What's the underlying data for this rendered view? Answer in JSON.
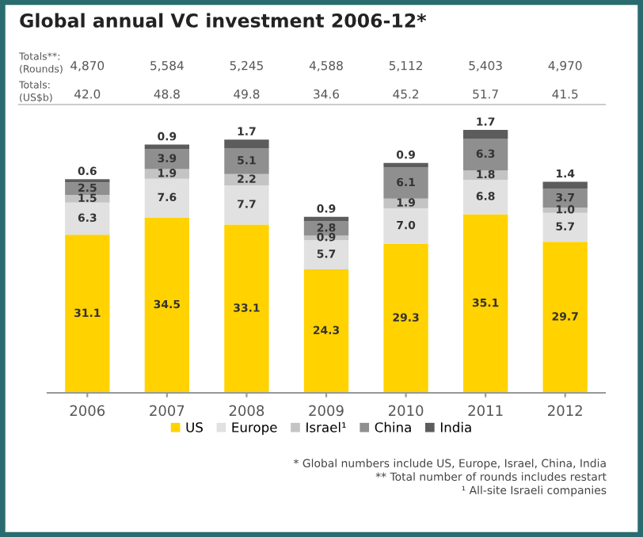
{
  "chart_data": {
    "type": "bar",
    "title": "Global annual VC investment 2006-12*",
    "categories": [
      "2006",
      "2007",
      "2008",
      "2009",
      "2010",
      "2011",
      "2012"
    ],
    "stacked": true,
    "legend": "bottom",
    "series": [
      {
        "name": "US",
        "color": "#ffd200",
        "values": [
          31.1,
          34.5,
          33.1,
          24.3,
          29.3,
          35.1,
          29.7
        ],
        "value_labels": [
          "31.1",
          "34.5",
          "33.1",
          "24.3",
          "29.3",
          "35.1",
          "29.7"
        ]
      },
      {
        "name": "Europe",
        "color": "#e1e1e1",
        "values": [
          6.3,
          7.6,
          7.7,
          5.7,
          7.0,
          6.8,
          5.7
        ],
        "value_labels": [
          "6.3",
          "7.6",
          "7.7",
          "5.7",
          "7.0",
          "6.8",
          "5.7"
        ]
      },
      {
        "name": "Israel¹",
        "color": "#c4c4c4",
        "values": [
          1.5,
          1.9,
          2.2,
          0.9,
          1.9,
          1.8,
          1.0
        ],
        "value_labels": [
          "1.5",
          "1.9",
          "2.2",
          "0.9",
          "1.9",
          "1.8",
          "1.0"
        ]
      },
      {
        "name": "China",
        "color": "#8f8f8f",
        "values": [
          2.5,
          3.9,
          5.1,
          2.8,
          6.1,
          6.3,
          3.7
        ],
        "value_labels": [
          "2.5",
          "3.9",
          "5.1",
          "2.8",
          "6.1",
          "6.3",
          "3.7"
        ]
      },
      {
        "name": "India",
        "color": "#5c5c5c",
        "values": [
          0.6,
          0.9,
          1.7,
          0.9,
          0.9,
          1.7,
          1.4
        ],
        "value_labels": [
          "0.6",
          "0.9",
          "1.7",
          "0.9",
          "0.9",
          "1.7",
          "1.4"
        ]
      }
    ],
    "annotations": [
      "Totals**:\n(Rounds)",
      "4,870",
      "5,584",
      "5,245",
      "4,588",
      "5,112",
      "5,403",
      "4,970",
      "Totals:\n(US$b)",
      "42.0",
      "48.8",
      "49.8",
      "34.6",
      "45.2",
      "51.7",
      "41.5",
      "* Global numbers include US, Europe, Israel, China, India",
      "** Total number of rounds includes restart",
      "¹ All-site Israeli companies"
    ]
  }
}
